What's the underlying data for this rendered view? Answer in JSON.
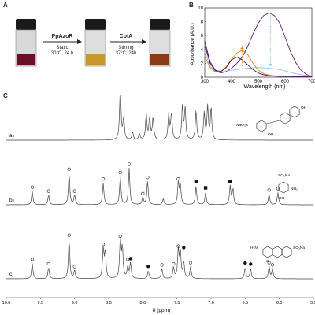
{
  "panels": {
    "a": "A",
    "b": "B",
    "c": "C"
  },
  "panel_a": {
    "step1": {
      "enzyme": "PpAzoR",
      "line1": "Static",
      "line2": "30°C, 24 h"
    },
    "step2": {
      "enzyme": "CotA",
      "line1": "Stirring",
      "line2": "37°C, 24h"
    },
    "vials": [
      {
        "cap": "#1a1a1a",
        "liquid": "#6a0f2a"
      },
      {
        "cap": "#1a1a1a",
        "liquid": "#c7962e"
      },
      {
        "cap": "#1a1a1a",
        "liquid": "#8a3a14"
      }
    ]
  },
  "chart_data": [
    {
      "type": "line",
      "panel": "B",
      "xlabel": "Wavelength (nm)",
      "ylabel": "Absorbance (A.U.)",
      "xlim": [
        300,
        700
      ],
      "ylim": [
        0,
        10
      ],
      "xticks": [
        300,
        400,
        500,
        600,
        700
      ],
      "yticks": [
        0,
        2,
        4,
        6,
        8,
        10
      ],
      "series": [
        {
          "color": "#5b1c78",
          "x": [
            300,
            320,
            340,
            360,
            380,
            400,
            420,
            440,
            460,
            480,
            500,
            520,
            540,
            560,
            580,
            600,
            620,
            640,
            660,
            680,
            700
          ],
          "y": [
            4.6,
            2.0,
            0.9,
            0.6,
            0.8,
            1.3,
            2.0,
            2.9,
            4.4,
            6.2,
            7.8,
            8.9,
            9.3,
            8.9,
            7.8,
            5.8,
            3.7,
            2.1,
            1.0,
            0.4,
            0.1
          ]
        },
        {
          "color": "#8fc3e8",
          "x": [
            300,
            320,
            340,
            360,
            380,
            400,
            420,
            440,
            460,
            480,
            500,
            520,
            540,
            560,
            580,
            600,
            620,
            640,
            660,
            680,
            700
          ],
          "y": [
            3.6,
            1.6,
            0.8,
            0.7,
            0.9,
            1.0,
            1.1,
            1.2,
            1.3,
            1.35,
            1.4,
            1.35,
            1.3,
            1.2,
            1.1,
            0.9,
            0.7,
            0.5,
            0.35,
            0.25,
            0.2
          ]
        },
        {
          "color": "#e07f1a",
          "x": [
            300,
            320,
            340,
            360,
            380,
            400,
            420,
            440,
            460,
            480,
            500,
            520,
            540,
            560,
            580,
            600,
            620,
            640,
            660,
            680,
            700
          ],
          "y": [
            3.0,
            1.4,
            0.7,
            0.8,
            1.5,
            2.6,
            3.5,
            3.9,
            3.3,
            2.0,
            1.0,
            0.5,
            0.3,
            0.2,
            0.15,
            0.1,
            0.1,
            0.1,
            0.05,
            0.05,
            0.05
          ]
        },
        {
          "color": "#3d1060",
          "x": [
            300,
            320,
            340,
            360,
            380,
            400,
            420,
            440,
            460,
            480,
            500,
            520,
            540,
            560,
            580,
            600,
            620,
            640,
            660,
            680,
            700
          ],
          "y": [
            5.2,
            2.2,
            1.0,
            0.8,
            1.4,
            2.5,
            2.9,
            2.5,
            1.8,
            1.1,
            0.6,
            0.35,
            0.2,
            0.15,
            0.1,
            0.1,
            0.1,
            0.05,
            0.05,
            0.05,
            0.05
          ]
        }
      ],
      "arrows": [
        {
          "color": "#8fc3e8",
          "x": 545,
          "from": 9.0,
          "to": 1.6,
          "direction": "down"
        },
        {
          "color": "#e07f1a",
          "x": 440,
          "from": 1.6,
          "to": 4.4,
          "direction": "up"
        }
      ]
    },
    {
      "type": "line",
      "panel": "C",
      "xlabel": "δ (ppm)",
      "xlim": [
        10.0,
        5.5
      ],
      "xticks": [
        "10.0",
        "9.5",
        "9.0",
        "8.5",
        "8.0",
        "7.5",
        "7.0",
        "6.5",
        "6.0",
        "5.5"
      ],
      "traces": [
        {
          "label": "a)",
          "peaks": [
            [
              8.33,
              1.0
            ],
            [
              8.28,
              0.42
            ],
            [
              7.95,
              0.48
            ],
            [
              7.9,
              0.42
            ],
            [
              7.85,
              0.42
            ],
            [
              7.62,
              0.48
            ],
            [
              7.58,
              0.5
            ],
            [
              7.42,
              0.62
            ],
            [
              7.38,
              0.6
            ],
            [
              7.22,
              0.55
            ],
            [
              7.1,
              0.5
            ],
            [
              7.05,
              0.62
            ],
            [
              7.0,
              0.6
            ],
            [
              8.05,
              0.12
            ],
            [
              8.15,
              0.15
            ]
          ]
        },
        {
          "label": "b)",
          "peaks": [
            [
              9.62,
              0.28
            ],
            [
              9.38,
              0.2
            ],
            [
              9.08,
              0.65
            ],
            [
              9.0,
              0.2
            ],
            [
              8.58,
              0.45
            ],
            [
              8.33,
              0.58
            ],
            [
              8.2,
              0.75
            ],
            [
              8.0,
              0.15
            ],
            [
              7.93,
              0.48
            ],
            [
              7.7,
              0.12
            ],
            [
              7.48,
              0.45
            ],
            [
              7.45,
              0.4
            ],
            [
              7.22,
              0.38
            ],
            [
              7.08,
              0.25
            ],
            [
              6.72,
              0.38
            ],
            [
              6.68,
              0.32
            ],
            [
              6.15,
              0.22
            ],
            [
              6.02,
              0.25
            ]
          ]
        },
        {
          "label": "c)",
          "peaks": [
            [
              9.62,
              0.28
            ],
            [
              9.38,
              0.2
            ],
            [
              9.08,
              0.72
            ],
            [
              9.0,
              0.15
            ],
            [
              8.58,
              0.55
            ],
            [
              8.55,
              0.48
            ],
            [
              8.33,
              0.7
            ],
            [
              8.3,
              0.55
            ],
            [
              8.22,
              0.22
            ],
            [
              8.18,
              0.28
            ],
            [
              7.92,
              0.14
            ],
            [
              7.72,
              0.18
            ],
            [
              7.55,
              0.2
            ],
            [
              7.48,
              0.52
            ],
            [
              7.45,
              0.48
            ],
            [
              7.4,
              0.3
            ],
            [
              7.3,
              0.22
            ],
            [
              6.5,
              0.2
            ],
            [
              6.42,
              0.18
            ],
            [
              6.15,
              0.22
            ],
            [
              6.1,
              0.18
            ]
          ]
        }
      ],
      "structures": [
        {
          "text_left": "NaO₃S",
          "text_right": "OH",
          "text_bottom": "OH"
        },
        {
          "text_top": "SO₃Na",
          "text_right": "NH₂",
          "text_bottom": "OH"
        },
        {
          "text_left": "H₂N",
          "text_right": "SO₃Na",
          "text_bottom": "O"
        }
      ]
    }
  ]
}
